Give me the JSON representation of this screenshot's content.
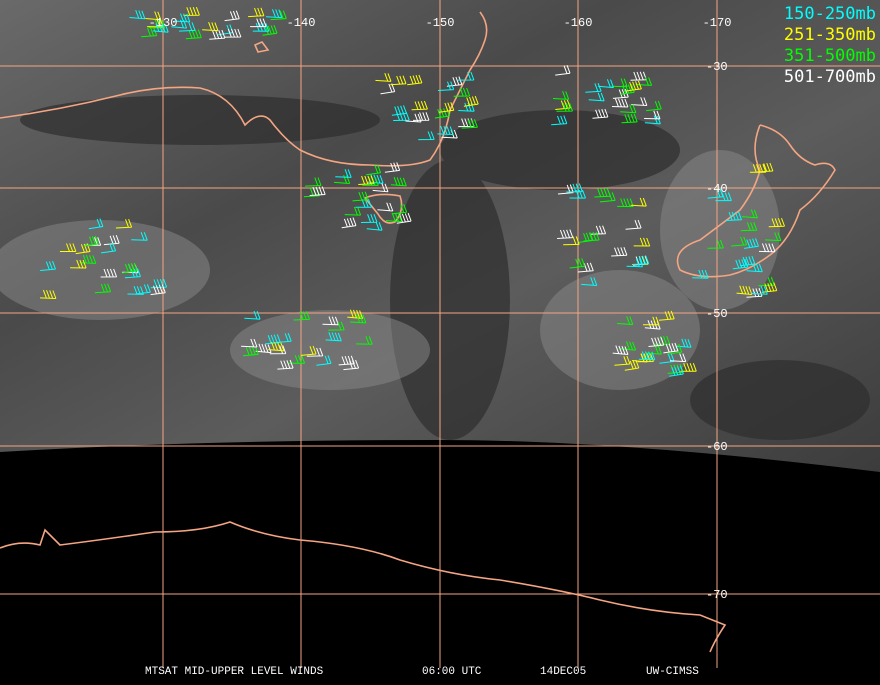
{
  "map": {
    "longitude_labels": [
      "-130",
      "-140",
      "-150",
      "-160",
      "-170"
    ],
    "latitude_labels": [
      "-30",
      "-40",
      "-50",
      "-60",
      "-70"
    ],
    "legend": [
      {
        "label": "150-250mb",
        "color": "#00ffff"
      },
      {
        "label": "251-350mb",
        "color": "#ffff00"
      },
      {
        "label": "351-500mb",
        "color": "#00ff00"
      },
      {
        "label": "501-700mb",
        "color": "#ffffff"
      }
    ],
    "footer": {
      "title": "MTSAT MID-UPPER LEVEL WINDS",
      "time": "06:00 UTC",
      "date": "14DEC05",
      "source": "UW-CIMSS"
    }
  }
}
